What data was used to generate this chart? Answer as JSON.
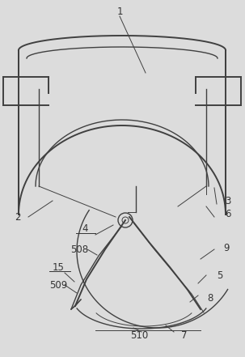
{
  "bg_color": "#dcdcdc",
  "line_color": "#404040",
  "label_color": "#333333",
  "fig_width": 3.03,
  "fig_height": 4.41,
  "dpi": 100
}
